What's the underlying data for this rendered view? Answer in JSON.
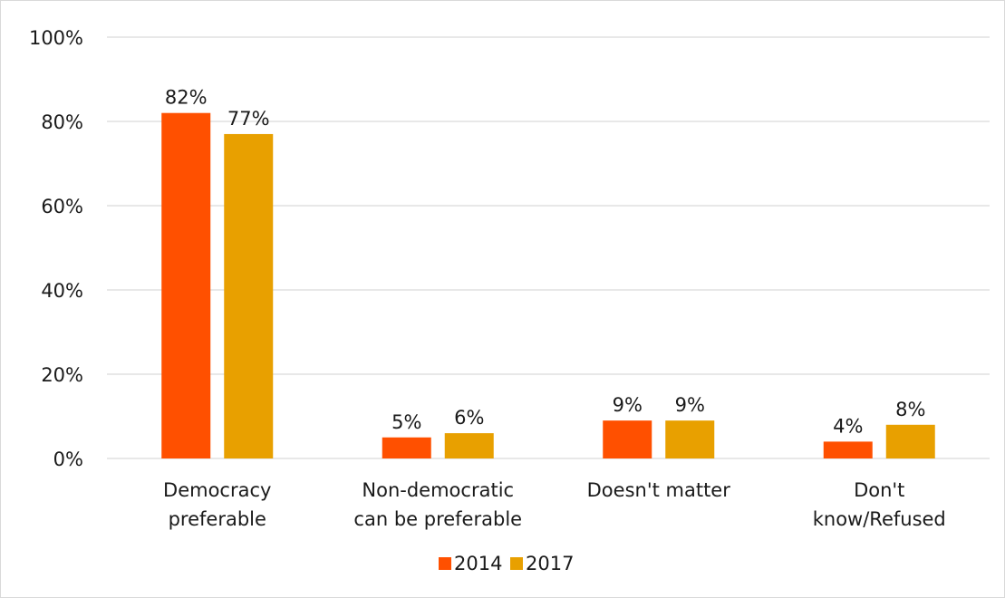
{
  "chart_data": {
    "type": "bar",
    "categories": [
      [
        "Democracy",
        "preferable"
      ],
      [
        "Non-democratic",
        "can be preferable"
      ],
      [
        "Doesn't matter"
      ],
      [
        "Don't",
        "know/Refused"
      ]
    ],
    "series": [
      {
        "name": "2014",
        "values": [
          82,
          5,
          9,
          4
        ],
        "labels": [
          "82%",
          "5%",
          "9%",
          "4%"
        ],
        "color": "#ff5000"
      },
      {
        "name": "2017",
        "values": [
          77,
          6,
          9,
          8
        ],
        "labels": [
          "77%",
          "6%",
          "9%",
          "8%"
        ],
        "color": "#e8a000"
      }
    ],
    "ylim": [
      0,
      100
    ],
    "yticks": [
      {
        "value": 0,
        "label": "0%"
      },
      {
        "value": 20,
        "label": "20%"
      },
      {
        "value": 40,
        "label": "40%"
      },
      {
        "value": 60,
        "label": "60%"
      },
      {
        "value": 80,
        "label": "80%"
      },
      {
        "value": 100,
        "label": "100%"
      }
    ],
    "grid": true,
    "legend": "bottom-center"
  }
}
